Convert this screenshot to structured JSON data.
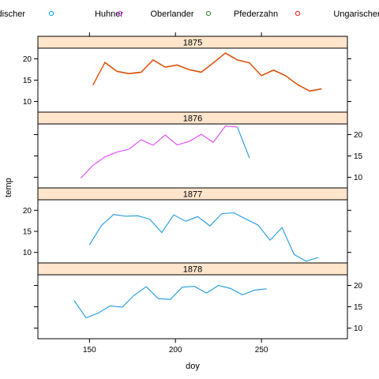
{
  "chart_data": {
    "type": "line",
    "xlabel": "doy",
    "ylabel": "temp",
    "xlim": [
      120,
      300
    ],
    "x_ticks": [
      150,
      200,
      250
    ],
    "y_ticks": [
      10,
      15,
      20
    ],
    "panel_ylim": [
      7.5,
      22.5
    ],
    "legend": [
      {
        "name": "Badischer",
        "label": "adischer",
        "color": "#00a8ff"
      },
      {
        "name": "Huhner",
        "label": "Huhner",
        "color": "#e040fb"
      },
      {
        "name": "Oberlander",
        "label": "Oberlander",
        "color": "#2e8b2e"
      },
      {
        "name": "Pfederzahn",
        "label": "Pfederzahn",
        "color": "#ff3030"
      },
      {
        "name": "Ungarischer",
        "label": "Ungarischer",
        "color": "#ff3030"
      }
    ],
    "panels": [
      {
        "strip": "1875",
        "y_axis_side": "left",
        "series": [
          {
            "color": "#8b6914",
            "values": [
              [
                152,
                13.9
              ],
              [
                159,
                19.2
              ],
              [
                166,
                17.1
              ],
              [
                173,
                16.6
              ],
              [
                180,
                16.9
              ],
              [
                187,
                19.8
              ],
              [
                194,
                18.1
              ],
              [
                201,
                18.6
              ],
              [
                208,
                17.5
              ],
              [
                215,
                16.9
              ],
              [
                222,
                19.1
              ],
              [
                229,
                21.4
              ],
              [
                236,
                19.8
              ],
              [
                243,
                19.1
              ],
              [
                250,
                16.1
              ],
              [
                257,
                17.4
              ],
              [
                264,
                16.1
              ],
              [
                271,
                14.0
              ],
              [
                278,
                12.5
              ],
              [
                285,
                13.0
              ]
            ]
          },
          {
            "color": "#ff4500",
            "values": [
              [
                152,
                13.8
              ],
              [
                159,
                19.1
              ],
              [
                166,
                17.0
              ],
              [
                173,
                16.5
              ],
              [
                180,
                16.8
              ],
              [
                187,
                19.7
              ],
              [
                194,
                18.0
              ],
              [
                201,
                18.5
              ],
              [
                208,
                17.4
              ],
              [
                215,
                16.8
              ],
              [
                222,
                19.0
              ],
              [
                229,
                21.3
              ],
              [
                236,
                19.7
              ],
              [
                243,
                19.0
              ],
              [
                250,
                16.0
              ],
              [
                257,
                17.3
              ],
              [
                264,
                16.0
              ],
              [
                271,
                13.9
              ],
              [
                278,
                12.4
              ],
              [
                285,
                12.9
              ]
            ]
          }
        ]
      },
      {
        "strip": "1876",
        "y_axis_side": "right",
        "series": [
          {
            "color": "#e040fb",
            "values": [
              [
                145,
                9.8
              ],
              [
                152,
                12.8
              ],
              [
                159,
                14.8
              ],
              [
                166,
                15.9
              ],
              [
                173,
                16.6
              ],
              [
                180,
                18.8
              ],
              [
                187,
                17.5
              ],
              [
                194,
                19.9
              ],
              [
                201,
                17.6
              ],
              [
                208,
                18.4
              ],
              [
                215,
                20.1
              ],
              [
                222,
                18.2
              ],
              [
                229,
                22.0
              ],
              [
                236,
                21.8
              ]
            ]
          },
          {
            "color": "#1e9ae0",
            "values": [
              [
                236,
                21.8
              ],
              [
                243,
                14.5
              ]
            ]
          }
        ]
      },
      {
        "strip": "1877",
        "y_axis_side": "left",
        "series": [
          {
            "color": "#1e9ae0",
            "values": [
              [
                150,
                11.8
              ],
              [
                157,
                16.4
              ],
              [
                164,
                19.0
              ],
              [
                171,
                18.6
              ],
              [
                178,
                18.7
              ],
              [
                185,
                17.9
              ],
              [
                192,
                14.7
              ],
              [
                199,
                18.9
              ],
              [
                206,
                17.4
              ],
              [
                213,
                18.5
              ],
              [
                220,
                16.3
              ],
              [
                227,
                19.2
              ],
              [
                234,
                19.4
              ],
              [
                241,
                17.9
              ],
              [
                248,
                16.5
              ],
              [
                255,
                12.9
              ],
              [
                262,
                15.9
              ],
              [
                269,
                9.5
              ],
              [
                276,
                7.9
              ],
              [
                283,
                8.8
              ]
            ]
          }
        ]
      },
      {
        "strip": "1878",
        "y_axis_side": "right",
        "series": [
          {
            "color": "#1e9ae0",
            "values": [
              [
                141,
                16.5
              ],
              [
                148,
                12.4
              ],
              [
                155,
                13.5
              ],
              [
                162,
                15.2
              ],
              [
                169,
                14.9
              ],
              [
                176,
                17.7
              ],
              [
                183,
                19.7
              ],
              [
                190,
                16.9
              ],
              [
                197,
                16.7
              ],
              [
                204,
                19.6
              ],
              [
                211,
                19.8
              ],
              [
                218,
                18.2
              ],
              [
                225,
                20.0
              ],
              [
                232,
                19.3
              ],
              [
                239,
                17.8
              ],
              [
                246,
                18.9
              ],
              [
                253,
                19.2
              ]
            ]
          }
        ]
      }
    ]
  }
}
